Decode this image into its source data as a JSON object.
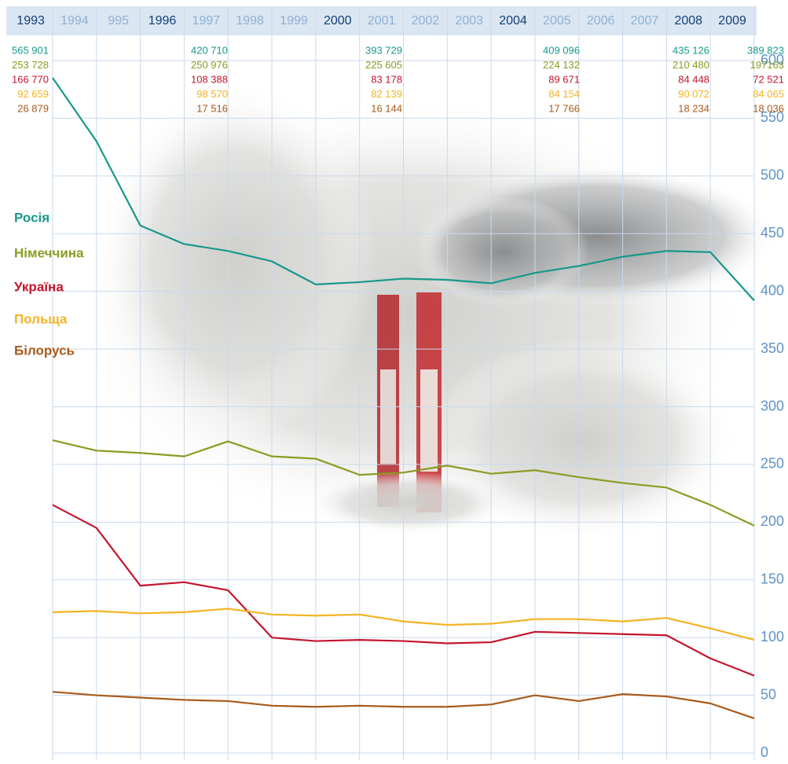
{
  "chart_data": {
    "type": "line",
    "categories": [
      "1993",
      "1994",
      "995",
      "1996",
      "1997",
      "1998",
      "1999",
      "2000",
      "2001",
      "2002",
      "2003",
      "2004",
      "2005",
      "2006",
      "2007",
      "2008",
      "2009"
    ],
    "series": [
      {
        "name": "Росія",
        "color": "#17998b",
        "values": [
          585,
          530,
          457,
          441,
          435,
          426,
          406,
          408,
          411,
          410,
          407,
          416,
          422,
          430,
          435,
          434,
          392
        ]
      },
      {
        "name": "Німеччина",
        "color": "#8a9c22",
        "values": [
          271,
          262,
          260,
          257,
          270,
          257,
          255,
          241,
          243,
          249,
          242,
          245,
          239,
          234,
          230,
          215,
          197
        ]
      },
      {
        "name": "Україна",
        "color": "#c3162c",
        "values": [
          215,
          195,
          145,
          148,
          141,
          100,
          97,
          98,
          97,
          95,
          96,
          105,
          104,
          103,
          102,
          82,
          67
        ]
      },
      {
        "name": "Польща",
        "color": "#f4b323",
        "values": [
          122,
          123,
          121,
          122,
          125,
          120,
          119,
          120,
          114,
          111,
          112,
          116,
          116,
          114,
          117,
          108,
          98
        ]
      },
      {
        "name": "Білорусь",
        "color": "#a85a1a",
        "values": [
          53,
          50,
          48,
          46,
          45,
          41,
          40,
          41,
          40,
          40,
          42,
          50,
          45,
          51,
          49,
          43,
          30
        ]
      }
    ],
    "annotations": [
      [
        "565 901",
        "253 728",
        "166 770",
        "92 659",
        "26 879"
      ],
      [
        "420 710",
        "250 976",
        "108 388",
        "98 570",
        "17 516"
      ],
      [
        "393 729",
        "225 605",
        "83 178",
        "82 139",
        "16 144"
      ],
      [
        "409 096",
        "224 132",
        "89 671",
        "84 154",
        "17 766"
      ],
      [
        "435 126",
        "210 480",
        "84 448",
        "90 072",
        "18 234"
      ],
      [
        "389 823",
        "197163",
        "72 521",
        "84 065",
        "18 036"
      ]
    ],
    "ylim": [
      0,
      600
    ],
    "yticks": [
      0,
      50,
      100,
      150,
      200,
      250,
      300,
      350,
      400,
      450,
      500,
      550,
      600
    ],
    "grid": true
  }
}
